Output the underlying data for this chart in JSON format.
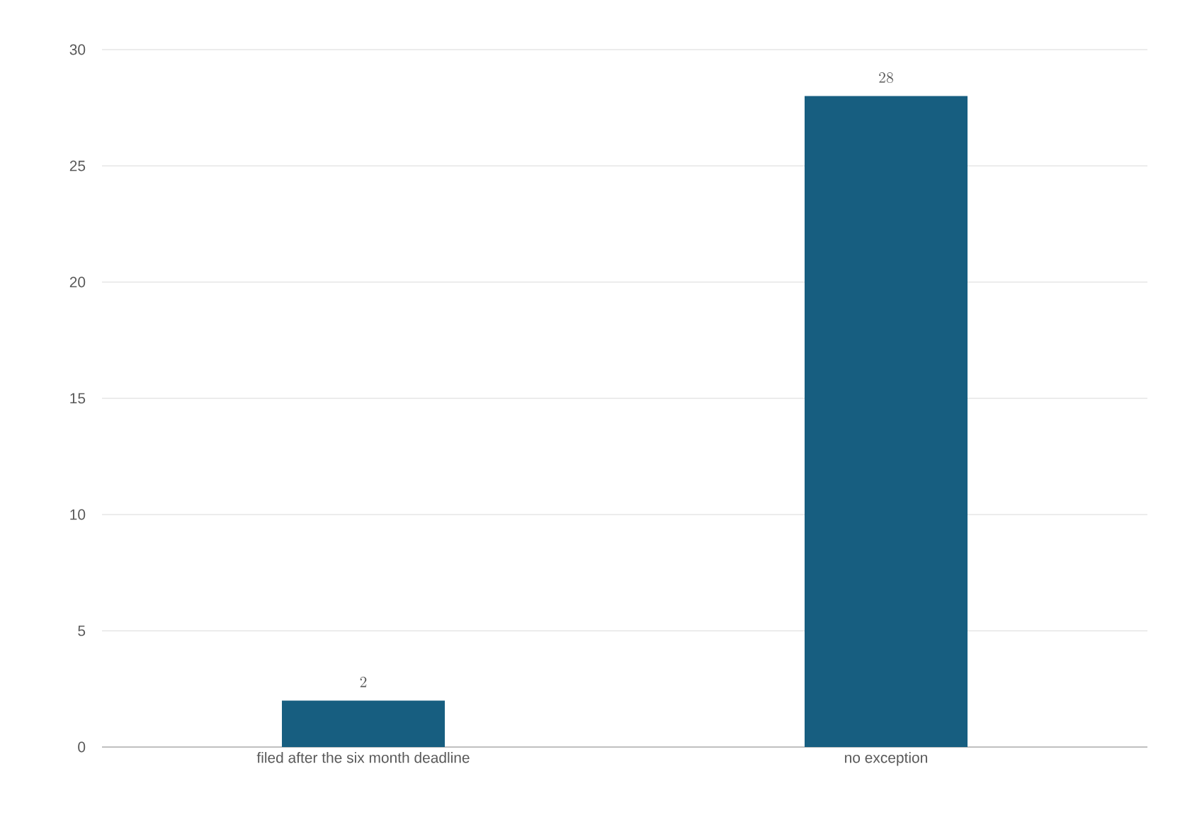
{
  "chart_data": {
    "type": "bar",
    "categories": [
      "filed after the six month deadline",
      "no exception"
    ],
    "values": [
      2,
      28
    ],
    "color": "#175e80",
    "ylim": [
      0,
      30
    ],
    "yticks": [
      0,
      5,
      10,
      15,
      20,
      25,
      30
    ],
    "grid": "y",
    "data_labels": true
  }
}
